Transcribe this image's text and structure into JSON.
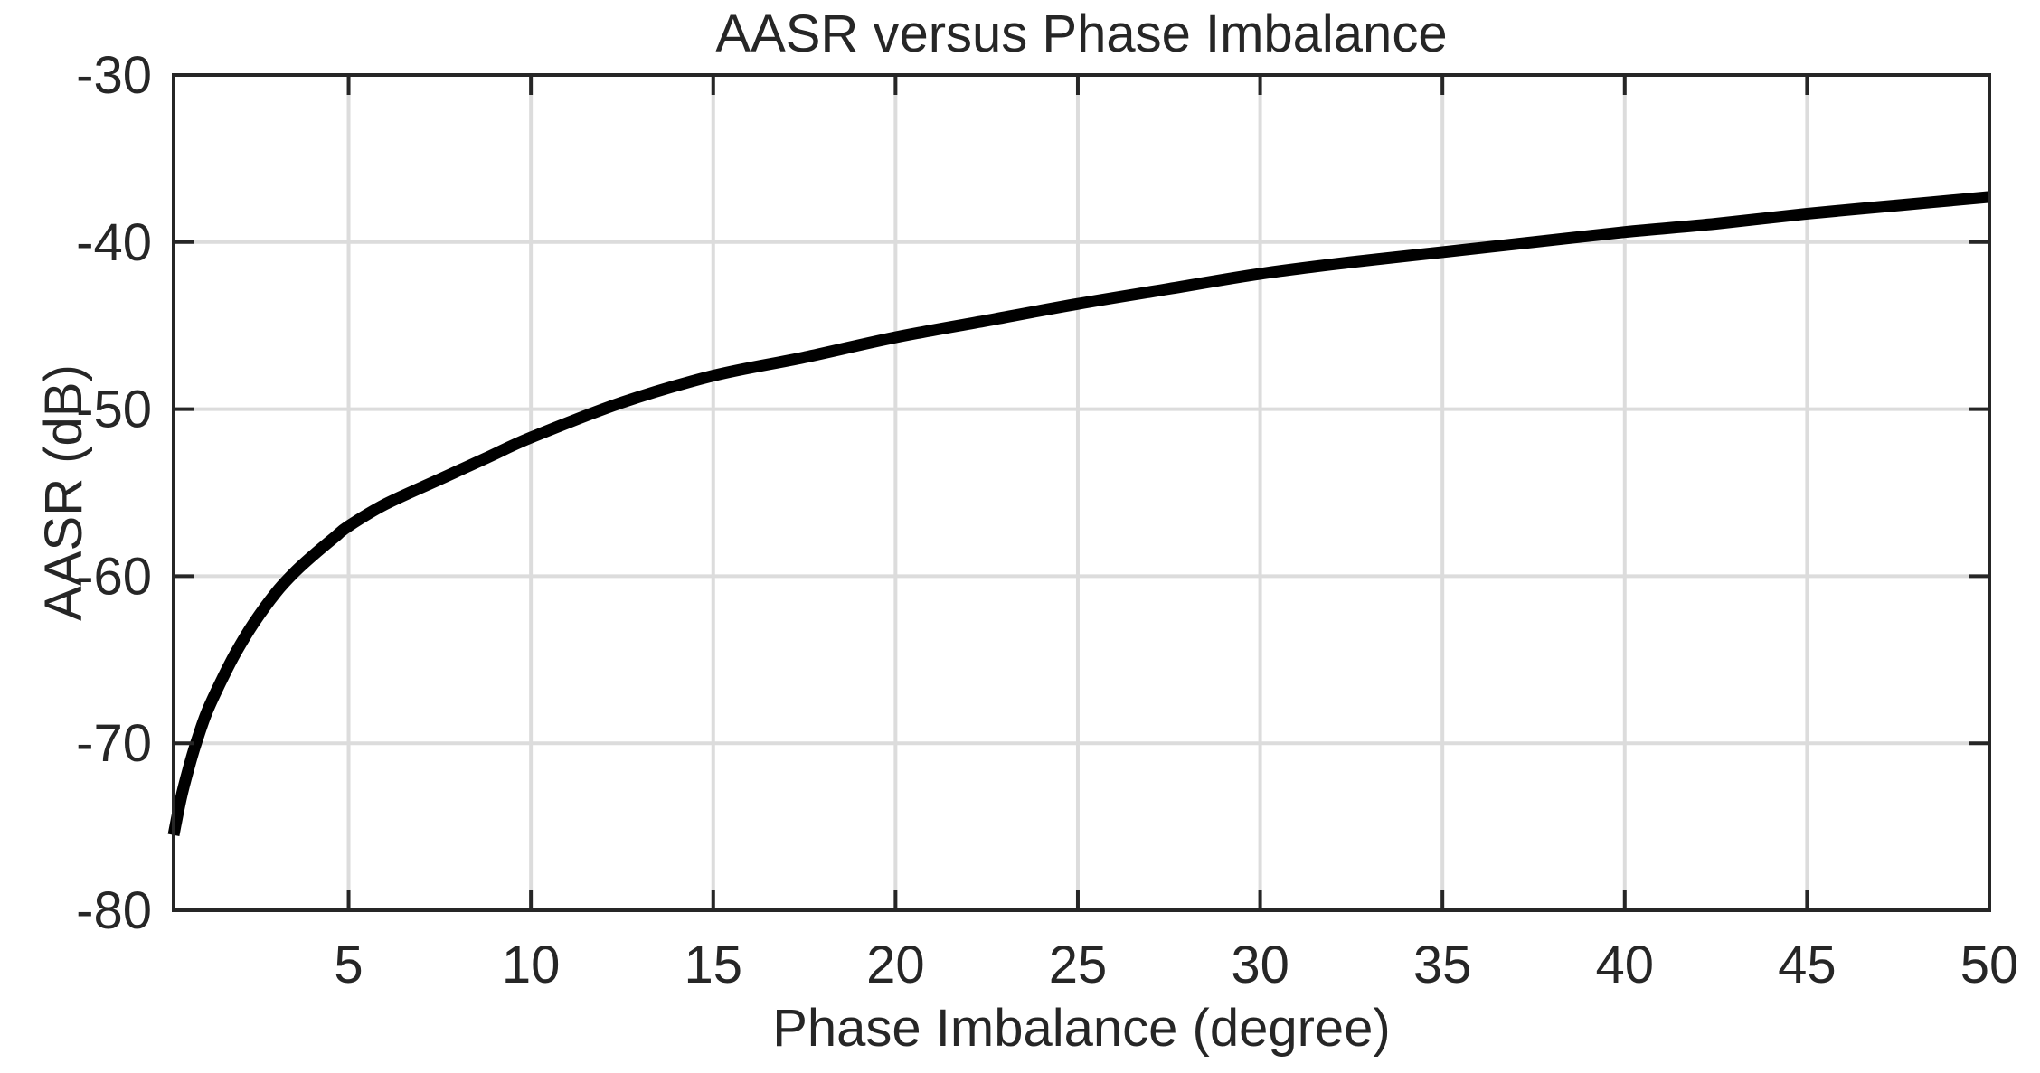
{
  "figure": {
    "background": "#ffffff"
  },
  "colors": {
    "curve": "#000000",
    "axis": "#262626",
    "grid": "#dcdcdc",
    "text": "#262626",
    "background": "#ffffff"
  },
  "chart_data": {
    "type": "line",
    "title": "AASR versus Phase Imbalance",
    "xlabel": "Phase Imbalance (degree)",
    "ylabel": "AASR (dB)",
    "xlim": [
      0.2,
      50
    ],
    "ylim": [
      -80,
      -30
    ],
    "x_ticks": [
      5,
      10,
      15,
      20,
      25,
      30,
      35,
      40,
      45,
      50
    ],
    "y_ticks": [
      -30,
      -40,
      -50,
      -60,
      -70,
      -80
    ],
    "grid": true,
    "legend": "none",
    "series": [
      {
        "name": "AASR",
        "color": "#000000",
        "line_width": 13,
        "x": [
          0.2,
          0.4,
          0.6,
          0.8,
          1.1,
          1.5,
          1.9,
          2.4,
          3.0,
          3.5,
          4.0,
          4.6,
          5.0,
          6.0,
          7.5,
          8.8,
          10.0,
          12.5,
          15.0,
          17.5,
          20.0,
          22.5,
          25.0,
          27.5,
          30.0,
          32.5,
          35.0,
          37.5,
          40.0,
          42.5,
          45.0,
          47.5,
          50.0
        ],
        "y": [
          -75.5,
          -73.3,
          -71.6,
          -70.1,
          -68.2,
          -66.3,
          -64.6,
          -62.8,
          -61.0,
          -59.8,
          -58.8,
          -57.7,
          -57.0,
          -55.7,
          -54.2,
          -52.9,
          -51.7,
          -49.6,
          -48.0,
          -46.9,
          -45.7,
          -44.7,
          -43.7,
          -42.8,
          -41.9,
          -41.2,
          -40.6,
          -40.0,
          -39.4,
          -38.9,
          -38.3,
          -37.8,
          -37.3
        ]
      }
    ]
  }
}
